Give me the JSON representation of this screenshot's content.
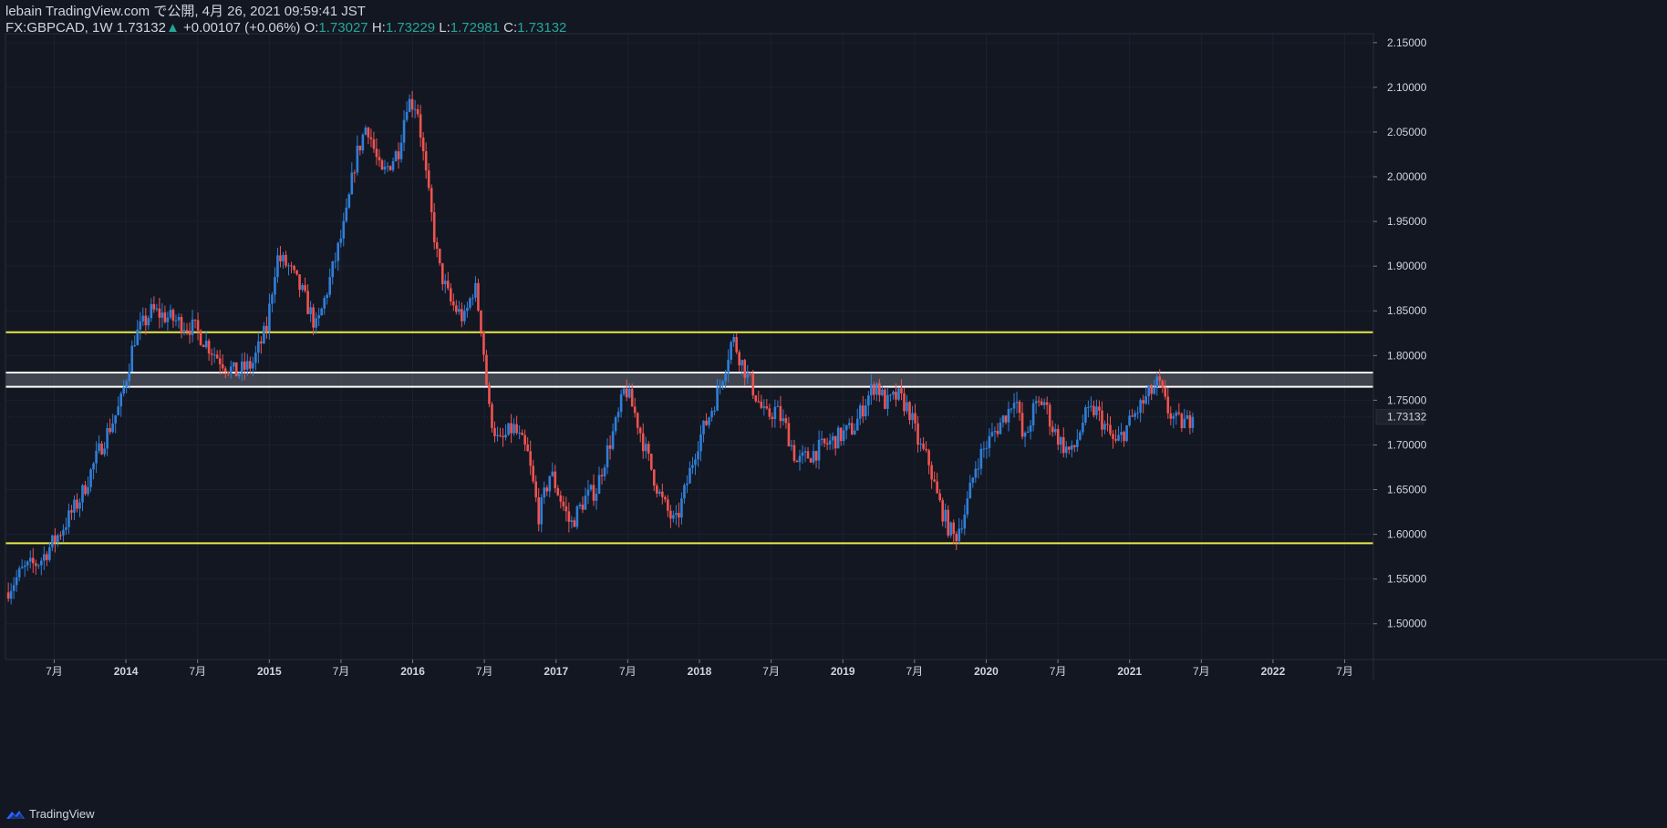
{
  "header": {
    "line1": "lebain TradingView.com で公開, 4月 26, 2021 09:59:41 JST",
    "symbol": "FX:GBPCAD, 1W",
    "last": "1.73132",
    "arrow": "▲",
    "change": "+0.00107 (+0.06%)",
    "o_label": "O:",
    "o_value": "1.73027",
    "h_label": "H:",
    "h_value": "1.73229",
    "l_label": "L:",
    "l_value": "1.72981",
    "c_label": "C:",
    "c_value": "1.73132"
  },
  "footer": {
    "brand": "TradingView"
  },
  "colors": {
    "background": "#131722",
    "up": "#2f7fd8",
    "down": "#ef5350",
    "support_line": "#e8e84a",
    "zone": "#ffffff",
    "grid": "#1c2030",
    "text": "#d1d4dc",
    "price_label_bg": "#1e222d"
  },
  "chart_data": {
    "type": "candlestick",
    "symbol": "FX:GBPCAD",
    "interval": "1W",
    "ylim": [
      1.46,
      2.16
    ],
    "price_ticks": [
      "2.15000",
      "2.10000",
      "2.05000",
      "2.00000",
      "1.95000",
      "1.90000",
      "1.85000",
      "1.80000",
      "1.75000",
      "1.70000",
      "1.65000",
      "1.60000",
      "1.55000",
      "1.50000"
    ],
    "price_tick_values": [
      2.15,
      2.1,
      2.05,
      2.0,
      1.95,
      1.9,
      1.85,
      1.8,
      1.75,
      1.7,
      1.65,
      1.6,
      1.55,
      1.5
    ],
    "time_ticks": [
      {
        "label": "7月",
        "t": 2013.5,
        "bold": false
      },
      {
        "label": "2014",
        "t": 2014.0,
        "bold": true
      },
      {
        "label": "7月",
        "t": 2014.5,
        "bold": false
      },
      {
        "label": "2015",
        "t": 2015.0,
        "bold": true
      },
      {
        "label": "7月",
        "t": 2015.5,
        "bold": false
      },
      {
        "label": "2016",
        "t": 2016.0,
        "bold": true
      },
      {
        "label": "7月",
        "t": 2016.5,
        "bold": false
      },
      {
        "label": "2017",
        "t": 2017.0,
        "bold": true
      },
      {
        "label": "7月",
        "t": 2017.5,
        "bold": false
      },
      {
        "label": "2018",
        "t": 2018.0,
        "bold": true
      },
      {
        "label": "7月",
        "t": 2018.5,
        "bold": false
      },
      {
        "label": "2019",
        "t": 2019.0,
        "bold": true
      },
      {
        "label": "7月",
        "t": 2019.5,
        "bold": false
      },
      {
        "label": "2020",
        "t": 2020.0,
        "bold": true
      },
      {
        "label": "7月",
        "t": 2020.5,
        "bold": false
      },
      {
        "label": "2021",
        "t": 2021.0,
        "bold": true
      },
      {
        "label": "7月",
        "t": 2021.5,
        "bold": false
      },
      {
        "label": "2022",
        "t": 2022.0,
        "bold": true
      },
      {
        "label": "7月",
        "t": 2022.5,
        "bold": false
      }
    ],
    "xlim": [
      2013.16,
      2022.7
    ],
    "horizontal_lines": [
      {
        "name": "resistance-line",
        "price": 1.826,
        "color": "#e8e84a"
      },
      {
        "name": "support-line",
        "price": 1.59,
        "color": "#e8e84a"
      }
    ],
    "zone": {
      "top": 1.781,
      "bottom": 1.765
    },
    "last_price": 1.73132,
    "last_price_label": "1.73132",
    "path_points": [
      [
        2013.18,
        1.535
      ],
      [
        2013.3,
        1.56
      ],
      [
        2013.42,
        1.57
      ],
      [
        2013.55,
        1.6
      ],
      [
        2013.7,
        1.64
      ],
      [
        2013.85,
        1.7
      ],
      [
        2013.98,
        1.745
      ],
      [
        2014.08,
        1.82
      ],
      [
        2014.2,
        1.85
      ],
      [
        2014.35,
        1.84
      ],
      [
        2014.5,
        1.83
      ],
      [
        2014.65,
        1.8
      ],
      [
        2014.78,
        1.78
      ],
      [
        2014.9,
        1.79
      ],
      [
        2015.0,
        1.83
      ],
      [
        2015.07,
        1.91
      ],
      [
        2015.15,
        1.9
      ],
      [
        2015.25,
        1.87
      ],
      [
        2015.35,
        1.83
      ],
      [
        2015.45,
        1.89
      ],
      [
        2015.55,
        1.95
      ],
      [
        2015.62,
        2.02
      ],
      [
        2015.7,
        2.06
      ],
      [
        2015.8,
        2.0
      ],
      [
        2015.92,
        2.03
      ],
      [
        2015.98,
        2.085
      ],
      [
        2016.05,
        2.08
      ],
      [
        2016.12,
        1.99
      ],
      [
        2016.2,
        1.9
      ],
      [
        2016.28,
        1.86
      ],
      [
        2016.38,
        1.84
      ],
      [
        2016.45,
        1.88
      ],
      [
        2016.5,
        1.83
      ],
      [
        2016.55,
        1.74
      ],
      [
        2016.62,
        1.7
      ],
      [
        2016.72,
        1.72
      ],
      [
        2016.82,
        1.69
      ],
      [
        2016.9,
        1.62
      ],
      [
        2016.98,
        1.67
      ],
      [
        2017.05,
        1.64
      ],
      [
        2017.12,
        1.61
      ],
      [
        2017.22,
        1.64
      ],
      [
        2017.3,
        1.65
      ],
      [
        2017.35,
        1.68
      ],
      [
        2017.45,
        1.73
      ],
      [
        2017.5,
        1.765
      ],
      [
        2017.58,
        1.73
      ],
      [
        2017.65,
        1.69
      ],
      [
        2017.75,
        1.64
      ],
      [
        2017.85,
        1.61
      ],
      [
        2017.92,
        1.65
      ],
      [
        2018.0,
        1.7
      ],
      [
        2018.08,
        1.73
      ],
      [
        2018.15,
        1.76
      ],
      [
        2018.2,
        1.79
      ],
      [
        2018.25,
        1.82
      ],
      [
        2018.32,
        1.79
      ],
      [
        2018.4,
        1.76
      ],
      [
        2018.48,
        1.73
      ],
      [
        2018.55,
        1.74
      ],
      [
        2018.62,
        1.72
      ],
      [
        2018.7,
        1.68
      ],
      [
        2018.8,
        1.69
      ],
      [
        2018.9,
        1.7
      ],
      [
        2019.0,
        1.71
      ],
      [
        2019.1,
        1.72
      ],
      [
        2019.18,
        1.75
      ],
      [
        2019.25,
        1.77
      ],
      [
        2019.32,
        1.745
      ],
      [
        2019.4,
        1.755
      ],
      [
        2019.48,
        1.74
      ],
      [
        2019.55,
        1.7
      ],
      [
        2019.62,
        1.68
      ],
      [
        2019.68,
        1.64
      ],
      [
        2019.75,
        1.61
      ],
      [
        2019.8,
        1.595
      ],
      [
        2019.88,
        1.63
      ],
      [
        2019.95,
        1.68
      ],
      [
        2020.02,
        1.7
      ],
      [
        2020.1,
        1.72
      ],
      [
        2020.18,
        1.74
      ],
      [
        2020.22,
        1.76
      ],
      [
        2020.28,
        1.7
      ],
      [
        2020.35,
        1.74
      ],
      [
        2020.42,
        1.75
      ],
      [
        2020.48,
        1.72
      ],
      [
        2020.55,
        1.7
      ],
      [
        2020.62,
        1.69
      ],
      [
        2020.7,
        1.73
      ],
      [
        2020.78,
        1.74
      ],
      [
        2020.85,
        1.72
      ],
      [
        2020.92,
        1.7
      ],
      [
        2021.0,
        1.72
      ],
      [
        2021.08,
        1.74
      ],
      [
        2021.15,
        1.755
      ],
      [
        2021.22,
        1.77
      ],
      [
        2021.28,
        1.74
      ],
      [
        2021.35,
        1.725
      ],
      [
        2021.42,
        1.725
      ],
      [
        2021.45,
        1.731
      ]
    ]
  }
}
